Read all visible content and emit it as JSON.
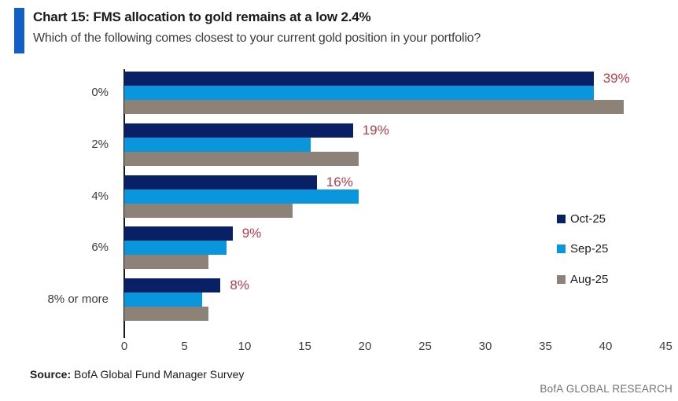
{
  "header": {
    "title": "Chart 15: FMS allocation to gold remains at a low 2.4%",
    "subtitle": "Which of the following comes closest to your current gold position in your portfolio?"
  },
  "chart_data": {
    "type": "bar",
    "orientation": "horizontal",
    "title": "Chart 15: FMS allocation to gold remains at a low 2.4%",
    "subtitle": "Which of the following comes closest to your current gold position in your portfolio?",
    "categories": [
      "0%",
      "2%",
      "4%",
      "6%",
      "8% or more"
    ],
    "series": [
      {
        "name": "Oct-25",
        "color": "#0A2066",
        "values": [
          39,
          19,
          16,
          9,
          8
        ]
      },
      {
        "name": "Sep-25",
        "color": "#0A96DC",
        "values": [
          39,
          15.5,
          19.5,
          8.5,
          6.5
        ]
      },
      {
        "name": "Aug-25",
        "color": "#8C8278",
        "values": [
          41.5,
          19.5,
          14,
          7,
          7
        ]
      }
    ],
    "value_labels": {
      "for_series": "Oct-25",
      "labels": [
        "39%",
        "19%",
        "16%",
        "9%",
        "8%"
      ],
      "color": "#B63B4A"
    },
    "xticks": [
      0,
      5,
      10,
      15,
      20,
      25,
      30,
      35,
      40,
      45
    ],
    "xlim": [
      0,
      45
    ],
    "grid": false,
    "legend_position": "right"
  },
  "footer": {
    "source_label": "Source:",
    "source_text": " BofA Global Fund Manager Survey",
    "branding": "BofA GLOBAL RESEARCH"
  },
  "colors": {
    "accent_bar": "#1160C8",
    "value_label_red": "#B63B4A",
    "axis": "#1a1a1a"
  }
}
